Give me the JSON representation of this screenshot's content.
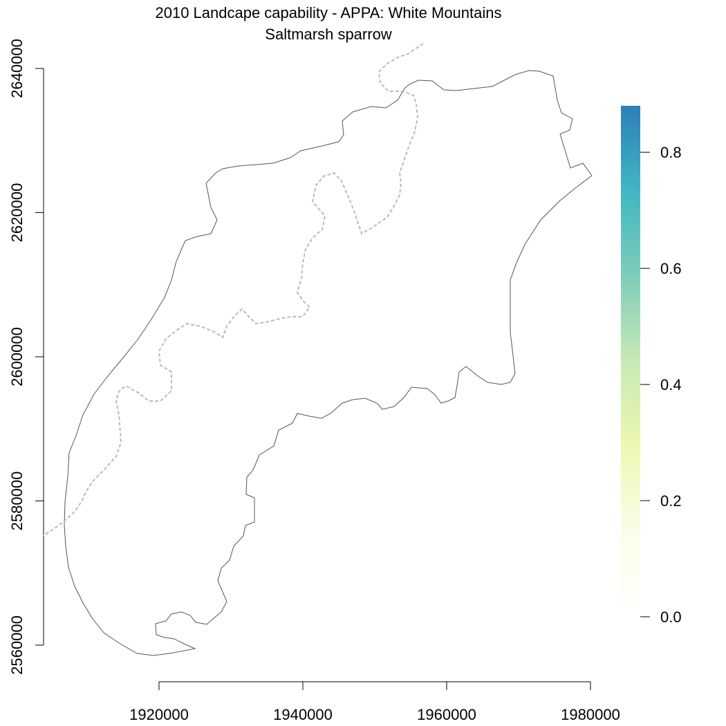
{
  "chart_data": {
    "type": "map",
    "title": "2010 Landcape capability - APPA: White Mountains",
    "subtitle": "Saltmarsh sparrow",
    "x_axis": {
      "ticks": [
        1920000,
        1940000,
        1960000,
        1980000
      ],
      "tick_labels": [
        "1920000",
        "1940000",
        "1960000",
        "1980000"
      ]
    },
    "y_axis": {
      "ticks": [
        2560000,
        2580000,
        2600000,
        2620000,
        2640000
      ],
      "tick_labels": [
        "2560000",
        "2580000",
        "2600000",
        "2620000",
        "2640000"
      ]
    },
    "colorbar": {
      "ticks": [
        0.0,
        0.2,
        0.4,
        0.6,
        0.8
      ],
      "tick_labels": [
        "0.0",
        "0.2",
        "0.4",
        "0.6",
        "0.8"
      ],
      "range": [
        0.0,
        0.88
      ],
      "colors": [
        "#ffffff",
        "#fbfde8",
        "#edf8b1",
        "#c7e9b4",
        "#7fcdbb",
        "#41b6c4",
        "#2c7fb8"
      ]
    },
    "layers": [
      {
        "name": "boundary",
        "style": "solid",
        "color": "#555555"
      },
      {
        "name": "state-line",
        "style": "dashed",
        "color": "#bbbbbb"
      }
    ]
  }
}
